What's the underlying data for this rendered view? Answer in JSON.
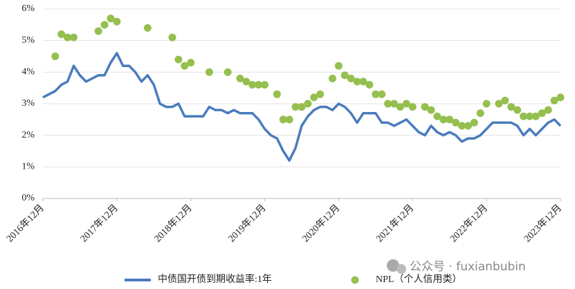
{
  "chart_data": {
    "type": "line",
    "categories": [
      "2016年12月",
      null,
      null,
      null,
      null,
      null,
      null,
      null,
      null,
      null,
      null,
      null,
      "2017年12月",
      null,
      null,
      null,
      null,
      null,
      null,
      null,
      null,
      null,
      null,
      null,
      "2018年12月",
      null,
      null,
      null,
      null,
      null,
      null,
      null,
      null,
      null,
      null,
      null,
      "2019年12月",
      null,
      null,
      null,
      null,
      null,
      null,
      null,
      null,
      null,
      null,
      null,
      "2020年12月",
      null,
      null,
      null,
      null,
      null,
      null,
      null,
      null,
      null,
      null,
      null,
      "2021年12月",
      null,
      null,
      null,
      null,
      null,
      null,
      null,
      null,
      null,
      null,
      null,
      "2022年12月",
      null,
      null,
      null,
      null,
      null,
      null,
      null,
      null,
      null,
      null,
      null,
      "2023年12月"
    ],
    "series": [
      {
        "name": "中债国开债到期收益率:1年",
        "type": "line",
        "color": "#4a7bbd",
        "values": [
          3.2,
          3.3,
          3.4,
          3.6,
          3.7,
          4.2,
          3.9,
          3.7,
          3.8,
          3.9,
          3.9,
          4.3,
          4.6,
          4.2,
          4.2,
          4.0,
          3.7,
          3.9,
          3.6,
          3.0,
          2.9,
          2.9,
          3.0,
          2.6,
          2.6,
          2.6,
          2.6,
          2.9,
          2.8,
          2.8,
          2.7,
          2.8,
          2.7,
          2.7,
          2.7,
          2.5,
          2.2,
          2.0,
          1.9,
          1.5,
          1.2,
          1.6,
          2.3,
          2.6,
          2.8,
          2.9,
          2.9,
          2.8,
          3.0,
          2.9,
          2.7,
          2.4,
          2.7,
          2.7,
          2.7,
          2.4,
          2.4,
          2.3,
          2.4,
          2.5,
          2.3,
          2.1,
          2.0,
          2.3,
          2.1,
          2.0,
          2.1,
          2.0,
          1.8,
          1.9,
          1.9,
          2.0,
          2.2,
          2.4,
          2.4,
          2.4,
          2.4,
          2.3,
          2.0,
          2.2,
          2.0,
          2.2,
          2.4,
          2.5,
          2.3
        ]
      },
      {
        "name": "NPL（个人信用类）",
        "type": "scatter",
        "color": "#95bf4f",
        "values": [
          null,
          null,
          4.5,
          5.2,
          5.1,
          5.1,
          null,
          null,
          null,
          5.3,
          5.5,
          5.7,
          5.6,
          null,
          null,
          null,
          null,
          5.4,
          null,
          null,
          null,
          5.1,
          4.4,
          4.2,
          4.3,
          null,
          null,
          4.0,
          null,
          null,
          4.0,
          null,
          3.8,
          3.7,
          3.6,
          3.6,
          3.6,
          null,
          3.3,
          2.5,
          2.5,
          2.9,
          2.9,
          3.0,
          3.2,
          3.3,
          null,
          3.8,
          4.2,
          3.9,
          3.8,
          3.7,
          3.7,
          3.6,
          3.3,
          3.3,
          3.0,
          3.0,
          2.9,
          3.0,
          2.9,
          null,
          2.9,
          2.8,
          2.6,
          2.5,
          2.5,
          2.4,
          2.3,
          2.3,
          2.4,
          2.7,
          3.0,
          null,
          3.0,
          3.1,
          2.9,
          2.8,
          2.6,
          2.6,
          2.6,
          2.7,
          2.8,
          3.1,
          3.2
        ]
      }
    ],
    "ylim": [
      0,
      6
    ],
    "yticks": [
      {
        "value": 0,
        "label": "0%"
      },
      {
        "value": 1,
        "label": "1%"
      },
      {
        "value": 2,
        "label": "2%"
      },
      {
        "value": 3,
        "label": "3%"
      },
      {
        "value": 4,
        "label": "4%"
      },
      {
        "value": 5,
        "label": "5%"
      },
      {
        "value": 6,
        "label": "6%"
      }
    ],
    "grid": true,
    "legend": "bottom",
    "watermark": "公众号 · fuxianbubin"
  }
}
